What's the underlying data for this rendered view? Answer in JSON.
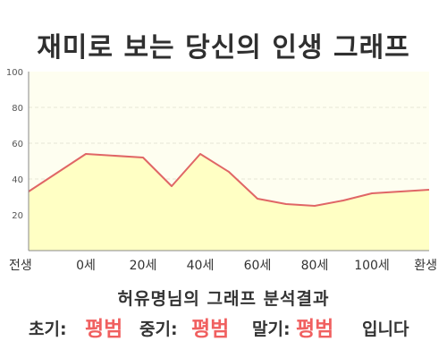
{
  "title": "재미로 보는 당신의 인생 그래프",
  "subtitle": "허유명님의 그래프 분석결과",
  "result": {
    "early_label": "초기:",
    "early_value": "평범",
    "middle_label": "중기:",
    "middle_value": "평범",
    "late_label": "말기:",
    "late_value": "평범",
    "suffix": "입니다"
  },
  "colors": {
    "line": "#e06666",
    "fill": "#ffffc4",
    "plot_bg": "#fefef0",
    "grid": "#e6e6d6",
    "highlight": "#f06060",
    "text": "#333333"
  },
  "chart_data": {
    "type": "area",
    "title": "재미로 보는 당신의 인생 그래프",
    "xlabel": "",
    "ylabel": "",
    "x": [
      -20,
      0,
      20,
      30,
      40,
      50,
      60,
      70,
      80,
      90,
      100,
      110,
      120
    ],
    "x_tick_values": [
      -20,
      0,
      20,
      40,
      60,
      80,
      100,
      120
    ],
    "x_tick_labels": [
      "전생",
      "0세",
      "20세",
      "40세",
      "60세",
      "80세",
      "100세",
      "환생"
    ],
    "values": [
      33,
      54,
      52,
      36,
      54,
      44,
      29,
      26,
      25,
      28,
      32,
      33,
      34
    ],
    "ylim": [
      0,
      100
    ],
    "xlim": [
      -20,
      120
    ],
    "y_ticks": [
      20,
      40,
      60,
      80,
      100
    ],
    "grid": true,
    "legend": "none"
  }
}
